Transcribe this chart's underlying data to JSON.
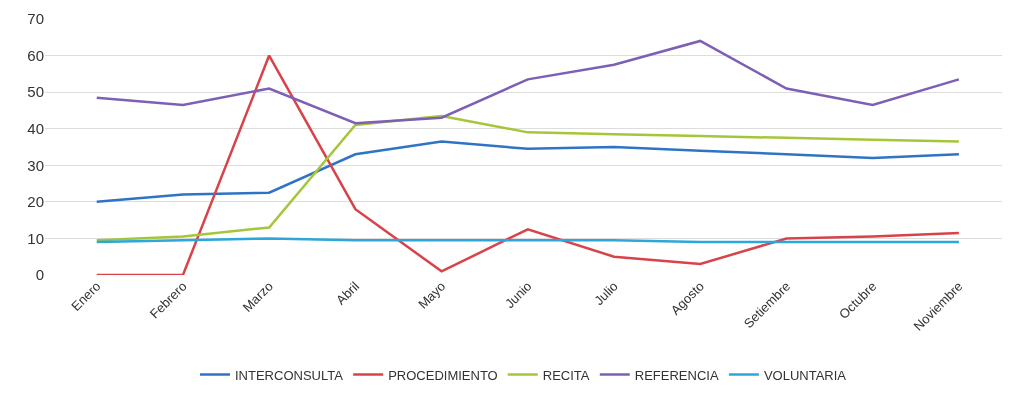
{
  "chart_data": {
    "type": "line",
    "categories": [
      "Enero",
      "Febrero",
      "Marzo",
      "Abril",
      "Mayo",
      "Junio",
      "Julio",
      "Agosto",
      "Setiembre",
      "Octubre",
      "Noviembre"
    ],
    "series": [
      {
        "name": "INTERCONSULTA",
        "color": "#2f74c4",
        "values": [
          20,
          22,
          22.5,
          33,
          36.5,
          34.5,
          35,
          34,
          33,
          32,
          33
        ]
      },
      {
        "name": "PROCEDIMIENTO",
        "color": "#d8434a",
        "values": [
          0,
          0,
          60,
          18,
          1,
          12.5,
          5,
          3,
          10,
          10.5,
          11.5
        ]
      },
      {
        "name": "RECITA",
        "color": "#a5c63a",
        "values": [
          9.5,
          10.5,
          13,
          41,
          43.5,
          39,
          38.5,
          38,
          37.5,
          37,
          36.5
        ]
      },
      {
        "name": "REFERENCIA",
        "color": "#7d5fb6",
        "values": [
          48.5,
          46.5,
          51,
          41.5,
          43,
          53.5,
          57.5,
          64,
          51,
          46.5,
          53.5
        ]
      },
      {
        "name": "VOLUNTARIA",
        "color": "#2ba7d9",
        "values": [
          9,
          9.5,
          10,
          9.5,
          9.5,
          9.5,
          9.5,
          9,
          9,
          9,
          9
        ]
      }
    ],
    "ylim": [
      0,
      70
    ],
    "yticks": [
      0,
      10,
      20,
      30,
      40,
      50,
      60,
      70
    ],
    "grid": "y",
    "legend": "bottom",
    "marker": "none",
    "line_style": "solid"
  }
}
